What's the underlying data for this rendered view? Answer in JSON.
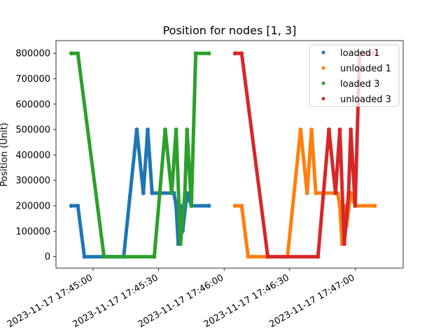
{
  "chart_data": {
    "type": "scatter",
    "title": "Position for nodes [1, 3]",
    "xlabel": "",
    "ylabel": "Position (Unit)",
    "ylim": [
      -45000,
      850000
    ],
    "xlim": [
      "2023-11-17 17:44:43",
      "2023-11-17 17:47:22"
    ],
    "x_ticks": [
      "2023-11-17 17:45:00",
      "2023-11-17 17:45:30",
      "2023-11-17 17:46:00",
      "2023-11-17 17:46:30",
      "2023-11-17 17:47:00"
    ],
    "y_ticks": [
      0,
      100000,
      200000,
      300000,
      400000,
      500000,
      600000,
      700000,
      800000
    ],
    "y_tick_labels": [
      "0",
      "100000",
      "200000",
      "300000",
      "400000",
      "500000",
      "600000",
      "700000",
      "800000"
    ],
    "grid": false,
    "legend_position": "top-right",
    "series": [
      {
        "name": "loaded 1",
        "color": "#1f77b4",
        "points": [
          [
            "2023-11-17 17:44:50",
            200000
          ],
          [
            "2023-11-17 17:44:53",
            200000
          ],
          [
            "2023-11-17 17:44:56",
            0
          ],
          [
            "2023-11-17 17:45:14",
            0
          ],
          [
            "2023-11-17 17:45:20",
            500000
          ],
          [
            "2023-11-17 17:45:23",
            250000
          ],
          [
            "2023-11-17 17:45:25",
            500000
          ],
          [
            "2023-11-17 17:45:27",
            250000
          ],
          [
            "2023-11-17 17:45:37",
            250000
          ],
          [
            "2023-11-17 17:45:38",
            200000
          ],
          [
            "2023-11-17 17:45:39",
            50000
          ],
          [
            "2023-11-17 17:45:40",
            200000
          ],
          [
            "2023-11-17 17:45:41",
            100000
          ],
          [
            "2023-11-17 17:45:43",
            250000
          ],
          [
            "2023-11-17 17:45:45",
            200000
          ],
          [
            "2023-11-17 17:45:53",
            200000
          ]
        ]
      },
      {
        "name": "unloaded 1",
        "color": "#ff7f0e",
        "points": [
          [
            "2023-11-17 17:46:05",
            200000
          ],
          [
            "2023-11-17 17:46:08",
            200000
          ],
          [
            "2023-11-17 17:46:11",
            0
          ],
          [
            "2023-11-17 17:46:29",
            0
          ],
          [
            "2023-11-17 17:46:35",
            500000
          ],
          [
            "2023-11-17 17:46:38",
            250000
          ],
          [
            "2023-11-17 17:46:40",
            500000
          ],
          [
            "2023-11-17 17:46:42",
            250000
          ],
          [
            "2023-11-17 17:46:52",
            250000
          ],
          [
            "2023-11-17 17:46:53",
            200000
          ],
          [
            "2023-11-17 17:46:54",
            50000
          ],
          [
            "2023-11-17 17:46:55",
            200000
          ],
          [
            "2023-11-17 17:46:56",
            120000
          ],
          [
            "2023-11-17 17:46:58",
            250000
          ],
          [
            "2023-11-17 17:47:00",
            200000
          ],
          [
            "2023-11-17 17:47:09",
            200000
          ]
        ]
      },
      {
        "name": "loaded 3",
        "color": "#2ca02c",
        "points": [
          [
            "2023-11-17 17:44:50",
            800000
          ],
          [
            "2023-11-17 17:44:53",
            800000
          ],
          [
            "2023-11-17 17:45:05",
            0
          ],
          [
            "2023-11-17 17:45:28",
            0
          ],
          [
            "2023-11-17 17:45:33",
            500000
          ],
          [
            "2023-11-17 17:45:36",
            250000
          ],
          [
            "2023-11-17 17:45:38",
            500000
          ],
          [
            "2023-11-17 17:45:40",
            50000
          ],
          [
            "2023-11-17 17:45:42",
            250000
          ],
          [
            "2023-11-17 17:45:43",
            500000
          ],
          [
            "2023-11-17 17:45:45",
            200000
          ],
          [
            "2023-11-17 17:45:47",
            800000
          ],
          [
            "2023-11-17 17:45:53",
            800000
          ]
        ]
      },
      {
        "name": "unloaded 3",
        "color": "#d62728",
        "points": [
          [
            "2023-11-17 17:46:05",
            800000
          ],
          [
            "2023-11-17 17:46:08",
            800000
          ],
          [
            "2023-11-17 17:46:20",
            0
          ],
          [
            "2023-11-17 17:46:43",
            0
          ],
          [
            "2023-11-17 17:46:48",
            500000
          ],
          [
            "2023-11-17 17:46:51",
            250000
          ],
          [
            "2023-11-17 17:46:53",
            500000
          ],
          [
            "2023-11-17 17:46:55",
            50000
          ],
          [
            "2023-11-17 17:46:57",
            250000
          ],
          [
            "2023-11-17 17:46:58",
            500000
          ],
          [
            "2023-11-17 17:47:00",
            200000
          ],
          [
            "2023-11-17 17:47:02",
            800000
          ],
          [
            "2023-11-17 17:47:09",
            800000
          ]
        ]
      }
    ]
  }
}
